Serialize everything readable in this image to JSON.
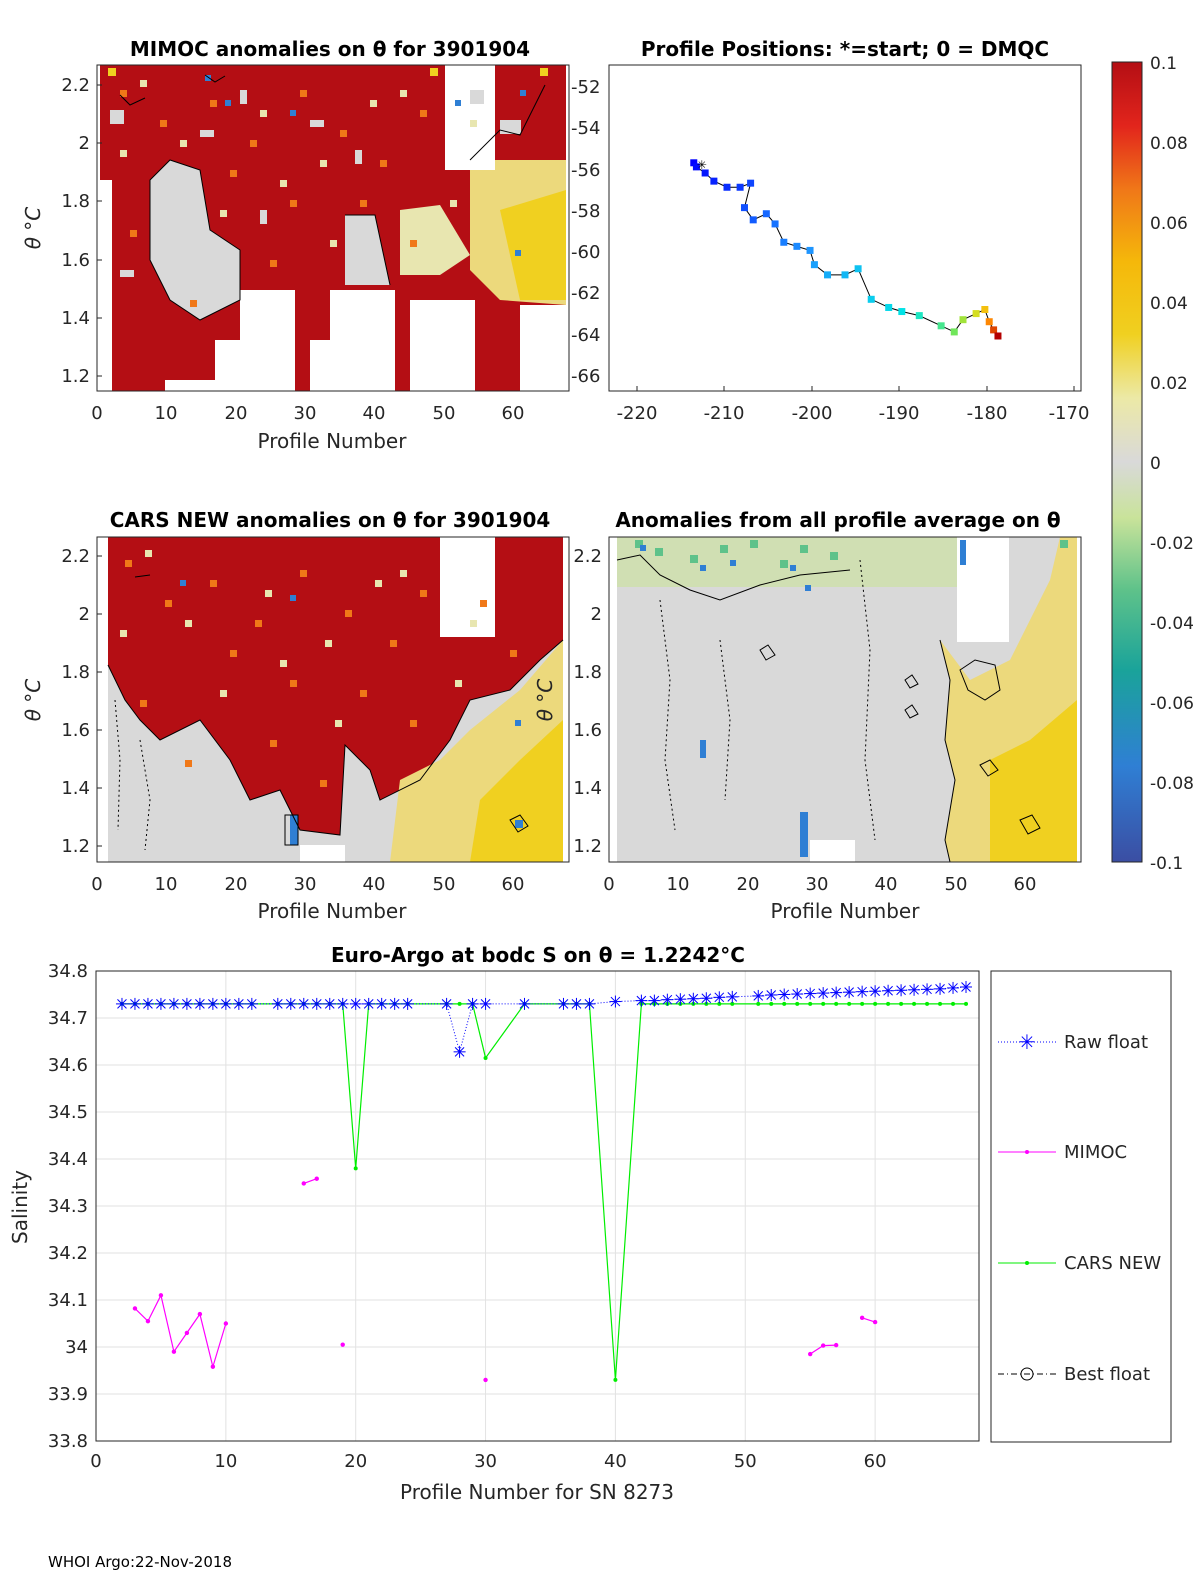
{
  "footer": "WHOI Argo:22-Nov-2018",
  "colors": {
    "raw_float": "#0000ff",
    "mimoc": "#ff00ff",
    "cars_new": "#00ee00",
    "best_float": "#000000",
    "land_red": "#b40e14",
    "neutral": "#d9d9d9"
  },
  "colorbar": {
    "ticks": [
      "0.1",
      "0.08",
      "0.06",
      "0.04",
      "0.02",
      "0",
      "-0.02",
      "-0.04",
      "-0.06",
      "-0.08",
      "-0.1"
    ],
    "min": -0.1,
    "max": 0.1
  },
  "chart_data": [
    {
      "type": "heatmap",
      "title": "MIMOC anomalies on θ  for 3901904",
      "xlabel": "Profile Number",
      "ylabel": "θ °C",
      "xlim": [
        0,
        68
      ],
      "ylim": [
        1.15,
        2.25
      ],
      "xticks": [
        "0",
        "10",
        "20",
        "30",
        "40",
        "50",
        "60"
      ],
      "yticks": [
        "1.2",
        "1.4",
        "1.6",
        "1.8",
        "2",
        "2.2"
      ],
      "right_yticks": [
        "-52",
        "-54",
        "-56",
        "-58",
        "-60",
        "-62",
        "-64",
        "-66"
      ]
    },
    {
      "type": "scatter",
      "title": "Profile Positions: *=start; 0 = DMQC",
      "xlim": [
        -222,
        -168
      ],
      "ylim": [
        -67,
        -51
      ],
      "xticks": [
        "-220",
        "-210",
        "-200",
        "-190",
        "-180",
        "-170"
      ],
      "lon": [
        -212.3,
        -212.0,
        -211.0,
        -210.0,
        -208.5,
        -207.0,
        -205.8,
        -206.5,
        -205.5,
        -204.0,
        -203.0,
        -202.0,
        -200.5,
        -199.0,
        -198.5,
        -197.0,
        -195.0,
        -193.5,
        -192.0,
        -190.0,
        -188.5,
        -186.5,
        -184.0,
        -182.5,
        -181.5,
        -180.0,
        -179.0,
        -178.5,
        -178.0,
        -177.5
      ],
      "lat": [
        -55.8,
        -56.0,
        -56.3,
        -56.7,
        -57.0,
        -57.0,
        -56.8,
        -58.0,
        -58.6,
        -58.3,
        -58.8,
        -59.7,
        -59.9,
        -60.1,
        -60.8,
        -61.3,
        -61.3,
        -61.0,
        -62.5,
        -62.9,
        -63.1,
        -63.3,
        -63.8,
        -64.1,
        -63.5,
        -63.2,
        -63.0,
        -63.6,
        -64.0,
        -64.3
      ]
    },
    {
      "type": "heatmap",
      "title": "CARS NEW anomalies on θ for 3901904",
      "xlabel": "Profile Number",
      "ylabel": "θ °C",
      "xlim": [
        0,
        68
      ],
      "ylim": [
        1.15,
        2.25
      ],
      "xticks": [
        "0",
        "10",
        "20",
        "30",
        "40",
        "50",
        "60"
      ],
      "yticks": [
        "1.2",
        "1.4",
        "1.6",
        "1.8",
        "2",
        "2.2"
      ]
    },
    {
      "type": "heatmap",
      "title": "Anomalies from all profile average on θ",
      "xlabel": "Profile Number",
      "ylabel": "θ °C",
      "xlim": [
        0,
        68
      ],
      "ylim": [
        1.15,
        2.25
      ],
      "xticks": [
        "0",
        "10",
        "20",
        "30",
        "40",
        "50",
        "60"
      ],
      "yticks": [
        "1.2",
        "1.4",
        "1.6",
        "1.8",
        "2",
        "2.2"
      ]
    },
    {
      "type": "line",
      "title": "Euro-Argo at bodc S on θ = 1.2242°C",
      "xlabel": "Profile Number for SN 8273",
      "ylabel": "Salinity",
      "xlim": [
        0,
        68
      ],
      "ylim": [
        33.8,
        34.8
      ],
      "xticks": [
        "0",
        "10",
        "20",
        "30",
        "40",
        "50",
        "60"
      ],
      "yticks": [
        "33.8",
        "33.9",
        "34",
        "34.1",
        "34.2",
        "34.3",
        "34.4",
        "34.5",
        "34.6",
        "34.7",
        "34.8"
      ],
      "grid": true,
      "legend": [
        "Raw float",
        "MIMOC",
        "CARS NEW",
        "Best float"
      ],
      "series": [
        {
          "name": "Raw float",
          "x": [
            2,
            3,
            4,
            5,
            6,
            7,
            8,
            9,
            10,
            11,
            12,
            14,
            15,
            16,
            17,
            18,
            19,
            20,
            21,
            22,
            23,
            24,
            27,
            28,
            29,
            30,
            33,
            36,
            37,
            38,
            40,
            42,
            43,
            44,
            45,
            46,
            47,
            48,
            49,
            51,
            52,
            53,
            54,
            55,
            56,
            57,
            58,
            59,
            60,
            61,
            62,
            63,
            64,
            65,
            66,
            67
          ],
          "y": [
            34.73,
            34.73,
            34.73,
            34.73,
            34.73,
            34.73,
            34.73,
            34.73,
            34.73,
            34.73,
            34.73,
            34.73,
            34.73,
            34.73,
            34.73,
            34.73,
            34.73,
            34.73,
            34.73,
            34.73,
            34.73,
            34.73,
            34.73,
            34.628,
            34.73,
            34.73,
            34.73,
            34.73,
            34.73,
            34.73,
            34.735,
            34.737,
            34.737,
            34.739,
            34.74,
            34.741,
            34.742,
            34.744,
            34.745,
            34.747,
            34.749,
            34.75,
            34.751,
            34.752,
            34.753,
            34.754,
            34.755,
            34.756,
            34.757,
            34.758,
            34.759,
            34.76,
            34.761,
            34.762,
            34.764,
            34.766
          ]
        },
        {
          "name": "MIMOC",
          "segments": [
            {
              "x": [
                3,
                4,
                5,
                6,
                7,
                8,
                9,
                10
              ],
              "y": [
                34.082,
                34.055,
                34.11,
                33.99,
                34.03,
                34.07,
                33.958,
                34.05
              ]
            },
            {
              "x": [
                16,
                17
              ],
              "y": [
                34.348,
                34.358
              ]
            },
            {
              "x": [
                19
              ],
              "y": [
                34.005
              ]
            },
            {
              "x": [
                30
              ],
              "y": [
                33.93
              ]
            },
            {
              "x": [
                55,
                56,
                57
              ],
              "y": [
                33.985,
                34.003,
                34.004
              ]
            },
            {
              "x": [
                59,
                60
              ],
              "y": [
                34.062,
                34.053
              ]
            }
          ]
        },
        {
          "name": "CARS NEW",
          "x": [
            2,
            3,
            4,
            5,
            6,
            7,
            8,
            9,
            10,
            11,
            12,
            14,
            15,
            16,
            17,
            18,
            19,
            20,
            21,
            22,
            23,
            24,
            27,
            28,
            29,
            30,
            33,
            36,
            37,
            38,
            40,
            42,
            43,
            44,
            45,
            46,
            47,
            48,
            49,
            51,
            52,
            53,
            54,
            55,
            56,
            57,
            58,
            59,
            60,
            61,
            62,
            63,
            64,
            65,
            66,
            67
          ],
          "y": [
            34.73,
            34.73,
            34.73,
            34.73,
            34.73,
            34.73,
            34.73,
            34.73,
            34.73,
            34.73,
            34.73,
            34.73,
            34.73,
            34.73,
            34.73,
            34.73,
            34.73,
            34.38,
            34.73,
            34.73,
            34.73,
            34.73,
            34.73,
            34.73,
            34.73,
            34.615,
            34.73,
            34.73,
            34.73,
            34.73,
            33.93,
            34.73,
            34.73,
            34.73,
            34.73,
            34.73,
            34.73,
            34.73,
            34.73,
            34.73,
            34.73,
            34.73,
            34.73,
            34.73,
            34.73,
            34.73,
            34.73,
            34.73,
            34.73,
            34.73,
            34.73,
            34.73,
            34.73,
            34.73,
            34.73,
            34.73
          ]
        }
      ]
    }
  ]
}
